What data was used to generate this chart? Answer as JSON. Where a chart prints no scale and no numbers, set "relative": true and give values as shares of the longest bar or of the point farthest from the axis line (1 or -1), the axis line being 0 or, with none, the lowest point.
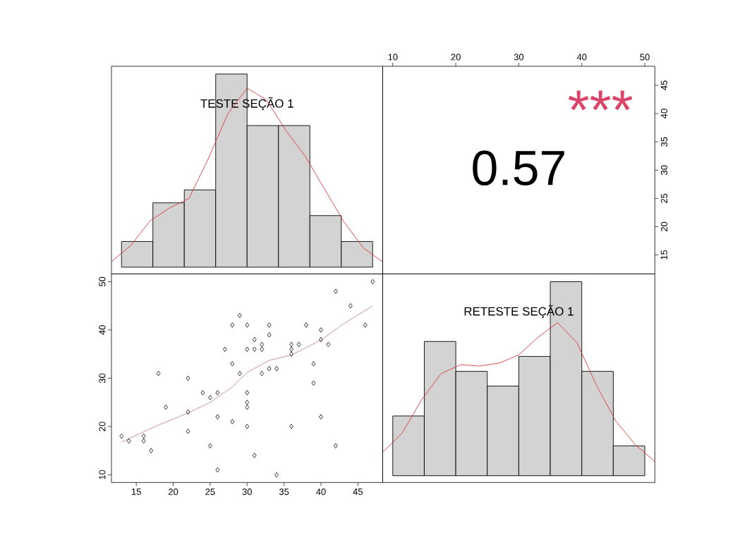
{
  "chart_data": [
    {
      "type": "bar",
      "title": "TESTE SEÇÃO 1",
      "relative": true,
      "color": "#d3d3d3",
      "categories": [
        null,
        null,
        null,
        null,
        null,
        null,
        null,
        null
      ],
      "values": [
        0.133,
        0.333,
        0.4,
        1,
        0.733,
        0.733,
        0.267,
        0.133
      ]
    },
    {
      "type": "line",
      "relative": true,
      "color": "#d93b3b",
      "categories": [
        null,
        null,
        null,
        null,
        null,
        null,
        null,
        null,
        null,
        null,
        null,
        null,
        null,
        null,
        null
      ],
      "values": [
        0.002,
        0.095,
        0.237,
        0.311,
        0.365,
        0.594,
        0.851,
        1,
        0.932,
        0.757,
        0.608,
        0.419,
        0.23,
        0.081,
        0
      ]
    },
    {
      "type": "scatter",
      "annotations": [
        "0.57",
        "***"
      ],
      "xlim": [
        8.4,
        51.6
      ],
      "xticks": [
        10,
        20,
        30,
        40,
        50
      ],
      "ylim": [
        11.64,
        48.36
      ],
      "yticks": [
        15,
        20,
        25,
        30,
        35,
        40,
        45
      ]
    },
    {
      "type": "scatter",
      "xlim": [
        11.64,
        48.36
      ],
      "xticks": [
        15,
        20,
        25,
        30,
        35,
        40,
        45
      ],
      "ylim": [
        8.4,
        51.6
      ],
      "yticks": [
        10,
        20,
        30,
        40,
        50
      ],
      "series": [
        {
          "type": "scatter",
          "marker": "diamond",
          "color": "#000000",
          "x": [
            13,
            14,
            16,
            16,
            17,
            18,
            19,
            22,
            22,
            22,
            24,
            25,
            26,
            26,
            25,
            26,
            27,
            28,
            28,
            28,
            29,
            29,
            30,
            33,
            33,
            31,
            32,
            30,
            31,
            32,
            33,
            34,
            32,
            30,
            30,
            30,
            30,
            31,
            34,
            36,
            36,
            36,
            37,
            36,
            38,
            39,
            39,
            40,
            40,
            41,
            40,
            42,
            42,
            44,
            46,
            47
          ],
          "values": [
            18,
            17,
            18,
            17,
            15,
            31,
            24,
            30,
            23,
            19,
            27,
            26,
            27,
            22,
            16,
            11,
            36,
            33,
            41,
            21,
            31,
            43,
            41,
            41,
            39,
            38,
            37,
            36,
            36,
            36,
            32,
            32,
            31,
            27,
            25,
            24,
            20,
            14,
            10,
            37,
            36,
            35,
            37,
            20,
            41,
            33,
            29,
            40,
            38,
            37,
            22,
            48,
            16,
            45,
            41,
            50
          ]
        },
        {
          "type": "line",
          "marker": "none",
          "color": "#c48a8a",
          "x": [
            13,
            18,
            22,
            25,
            28,
            30,
            33,
            36,
            40,
            43,
            47
          ],
          "values": [
            16.8,
            20.3,
            22.8,
            25,
            28.2,
            31.2,
            33.7,
            34.8,
            37.9,
            41.2,
            45
          ]
        }
      ]
    },
    {
      "type": "bar",
      "title": "RETESTE SEÇÃO 1",
      "relative": true,
      "color": "#d3d3d3",
      "categories": [
        null,
        null,
        null,
        null,
        null,
        null,
        null,
        null
      ],
      "values": [
        0.308,
        0.692,
        0.538,
        0.462,
        0.615,
        1,
        0.538,
        0.154
      ]
    },
    {
      "type": "line",
      "relative": true,
      "color": "#d93b3b",
      "categories": [
        null,
        null,
        null,
        null,
        null,
        null,
        null,
        null,
        null,
        null,
        null,
        null,
        null,
        null,
        null
      ],
      "values": [
        0.068,
        0.205,
        0.444,
        0.633,
        0.697,
        0.688,
        0.709,
        0.768,
        0.896,
        1,
        0.854,
        0.547,
        0.29,
        0.12,
        0
      ]
    }
  ]
}
